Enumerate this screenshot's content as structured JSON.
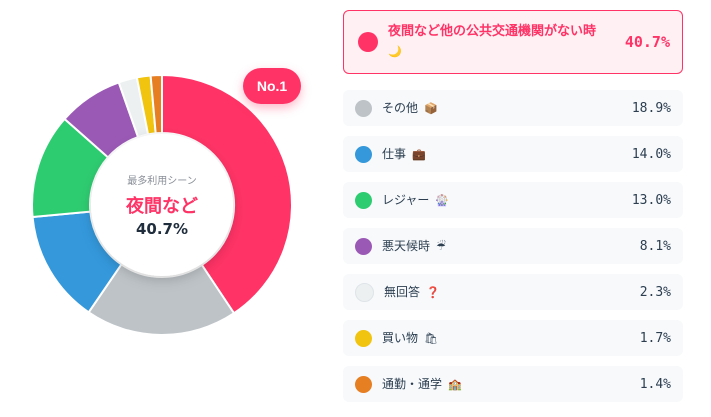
{
  "chart_data": {
    "type": "pie",
    "categories": [
      "夜間など他の公共交通機関がない時",
      "その他",
      "仕事",
      "レジャー",
      "悪天候時",
      "無回答",
      "買い物",
      "通勤・通学"
    ],
    "emojis": [
      "🌙",
      "📦",
      "💼",
      "🎡",
      "☔",
      "❓",
      "🛍",
      "🏫"
    ],
    "values": [
      40.7,
      18.9,
      14.0,
      13.0,
      8.1,
      2.3,
      1.7,
      1.4
    ],
    "value_labels": [
      "40.7%",
      "18.9%",
      "14.0%",
      "13.0%",
      "8.1%",
      "2.3%",
      "1.7%",
      "1.4%"
    ],
    "colors": [
      "#ff3366",
      "#bdc3c7",
      "#3498db",
      "#2ecc71",
      "#9b59b6",
      "#ecf0f1",
      "#f1c40f",
      "#e67e22"
    ],
    "legend_placement": "right"
  },
  "badge": "No.1",
  "center": {
    "label": "最多利用シーン",
    "name": "夜間など",
    "value": "40.7%"
  }
}
